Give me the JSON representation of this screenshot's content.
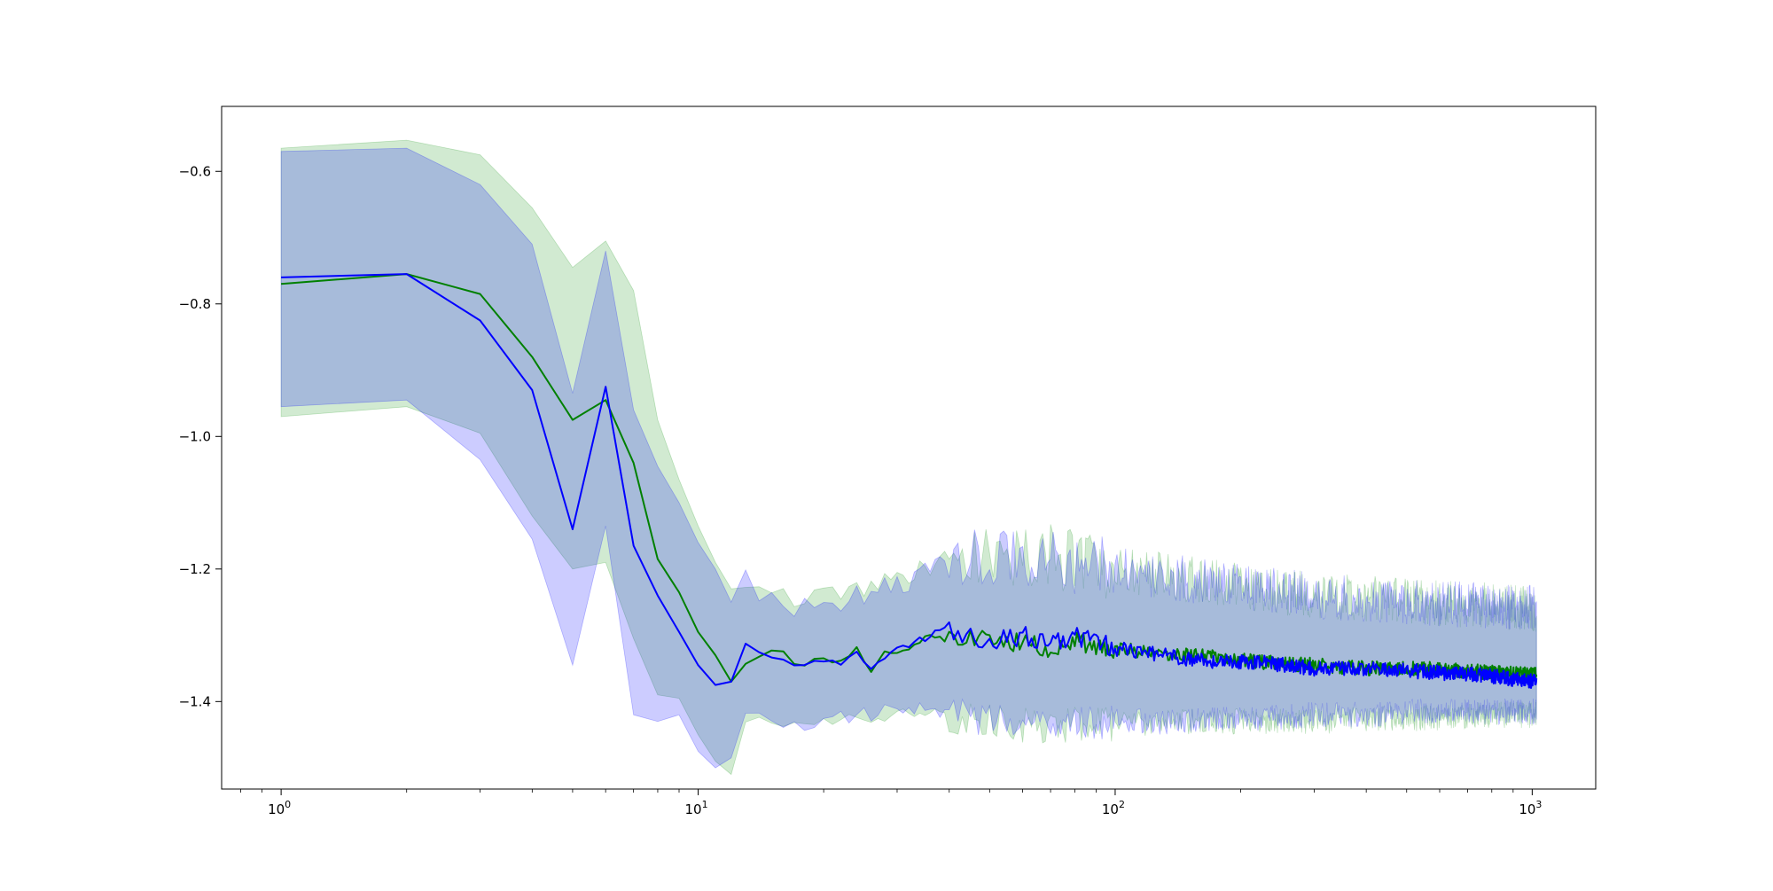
{
  "chart_data": {
    "type": "line",
    "title": "",
    "xlabel": "",
    "ylabel": "",
    "x_scale": "log",
    "xlim": [
      0.72,
      1420
    ],
    "ylim": [
      -1.532,
      -0.502
    ],
    "grid": false,
    "legend": "none",
    "x_ticks": [
      {
        "value": 1,
        "base": "10",
        "exp": "0"
      },
      {
        "value": 10,
        "base": "10",
        "exp": "1"
      },
      {
        "value": 100,
        "base": "10",
        "exp": "2"
      },
      {
        "value": 1000,
        "base": "10",
        "exp": "3"
      }
    ],
    "y_ticks": [
      {
        "value": -0.6,
        "label": "−0.6"
      },
      {
        "value": -0.8,
        "label": "−0.8"
      },
      {
        "value": -1.0,
        "label": "−1.0"
      },
      {
        "value": -1.2,
        "label": "−1.2"
      },
      {
        "value": -1.4,
        "label": "−1.4"
      }
    ],
    "series": [
      {
        "color": "#008000",
        "band_color": "#2ca02c",
        "band_opacity": 0.22,
        "x": [
          1,
          2,
          3,
          4,
          5,
          6,
          7,
          8,
          9,
          10,
          11,
          12,
          13,
          14,
          15,
          16,
          17,
          18,
          19,
          20,
          22,
          24,
          26,
          28,
          30,
          33,
          36,
          40,
          45,
          50,
          60,
          70,
          80,
          100,
          130,
          170,
          220,
          300,
          400,
          550,
          750,
          1024
        ],
        "y": [
          -0.77,
          -0.755,
          -0.785,
          -0.88,
          -0.975,
          -0.945,
          -1.04,
          -1.185,
          -1.235,
          -1.295,
          -1.33,
          -1.37,
          -1.34,
          -1.33,
          -1.325,
          -1.325,
          -1.34,
          -1.345,
          -1.335,
          -1.33,
          -1.34,
          -1.32,
          -1.35,
          -1.32,
          -1.33,
          -1.31,
          -1.3,
          -1.305,
          -1.3,
          -1.31,
          -1.31,
          -1.32,
          -1.31,
          -1.32,
          -1.33,
          -1.33,
          -1.34,
          -1.345,
          -1.35,
          -1.35,
          -1.355,
          -1.36
        ],
        "upper": [
          -0.565,
          -0.553,
          -0.575,
          -0.655,
          -0.745,
          -0.705,
          -0.78,
          -0.975,
          -1.065,
          -1.135,
          -1.19,
          -1.23,
          -1.24,
          -1.235,
          -1.225,
          -1.23,
          -1.24,
          -1.245,
          -1.24,
          -1.24,
          -1.235,
          -1.23,
          -1.225,
          -1.22,
          -1.215,
          -1.21,
          -1.2,
          -1.19,
          -1.18,
          -1.18,
          -1.18,
          -1.18,
          -1.19,
          -1.2,
          -1.21,
          -1.22,
          -1.23,
          -1.24,
          -1.245,
          -1.25,
          -1.255,
          -1.26
        ],
        "lower": [
          -0.97,
          -0.955,
          -0.995,
          -1.12,
          -1.2,
          -1.19,
          -1.305,
          -1.39,
          -1.395,
          -1.45,
          -1.49,
          -1.51,
          -1.43,
          -1.42,
          -1.425,
          -1.435,
          -1.44,
          -1.435,
          -1.43,
          -1.425,
          -1.43,
          -1.42,
          -1.425,
          -1.42,
          -1.42,
          -1.415,
          -1.42,
          -1.425,
          -1.43,
          -1.43,
          -1.435,
          -1.44,
          -1.435,
          -1.435,
          -1.43,
          -1.43,
          -1.43,
          -1.43,
          -1.425,
          -1.425,
          -1.42,
          -1.42
        ]
      },
      {
        "color": "#0000ff",
        "band_color": "#0000ff",
        "band_opacity": 0.2,
        "x": [
          1,
          2,
          3,
          4,
          5,
          6,
          7,
          8,
          9,
          10,
          11,
          12,
          13,
          14,
          15,
          16,
          17,
          18,
          19,
          20,
          22,
          24,
          26,
          28,
          30,
          33,
          36,
          40,
          45,
          50,
          60,
          70,
          80,
          100,
          130,
          170,
          220,
          300,
          400,
          550,
          750,
          1024
        ],
        "y": [
          -0.76,
          -0.755,
          -0.825,
          -0.93,
          -1.14,
          -0.925,
          -1.165,
          -1.24,
          -1.295,
          -1.345,
          -1.375,
          -1.37,
          -1.31,
          -1.32,
          -1.33,
          -1.335,
          -1.35,
          -1.345,
          -1.34,
          -1.345,
          -1.34,
          -1.33,
          -1.355,
          -1.33,
          -1.32,
          -1.31,
          -1.3,
          -1.29,
          -1.3,
          -1.31,
          -1.3,
          -1.31,
          -1.3,
          -1.32,
          -1.33,
          -1.34,
          -1.34,
          -1.35,
          -1.35,
          -1.355,
          -1.36,
          -1.37
        ],
        "upper": [
          -0.57,
          -0.565,
          -0.62,
          -0.71,
          -0.935,
          -0.72,
          -0.96,
          -1.045,
          -1.1,
          -1.16,
          -1.2,
          -1.25,
          -1.22,
          -1.23,
          -1.245,
          -1.25,
          -1.26,
          -1.255,
          -1.25,
          -1.25,
          -1.245,
          -1.24,
          -1.24,
          -1.23,
          -1.225,
          -1.215,
          -1.2,
          -1.19,
          -1.18,
          -1.18,
          -1.18,
          -1.18,
          -1.19,
          -1.2,
          -1.21,
          -1.22,
          -1.23,
          -1.24,
          -1.245,
          -1.25,
          -1.255,
          -1.26
        ],
        "lower": [
          -0.955,
          -0.945,
          -1.035,
          -1.155,
          -1.345,
          -1.135,
          -1.42,
          -1.43,
          -1.42,
          -1.475,
          -1.5,
          -1.485,
          -1.42,
          -1.425,
          -1.43,
          -1.44,
          -1.44,
          -1.435,
          -1.43,
          -1.43,
          -1.425,
          -1.42,
          -1.42,
          -1.415,
          -1.415,
          -1.41,
          -1.415,
          -1.42,
          -1.425,
          -1.43,
          -1.43,
          -1.435,
          -1.435,
          -1.43,
          -1.43,
          -1.425,
          -1.425,
          -1.42,
          -1.42,
          -1.415,
          -1.415,
          -1.415
        ]
      }
    ]
  }
}
